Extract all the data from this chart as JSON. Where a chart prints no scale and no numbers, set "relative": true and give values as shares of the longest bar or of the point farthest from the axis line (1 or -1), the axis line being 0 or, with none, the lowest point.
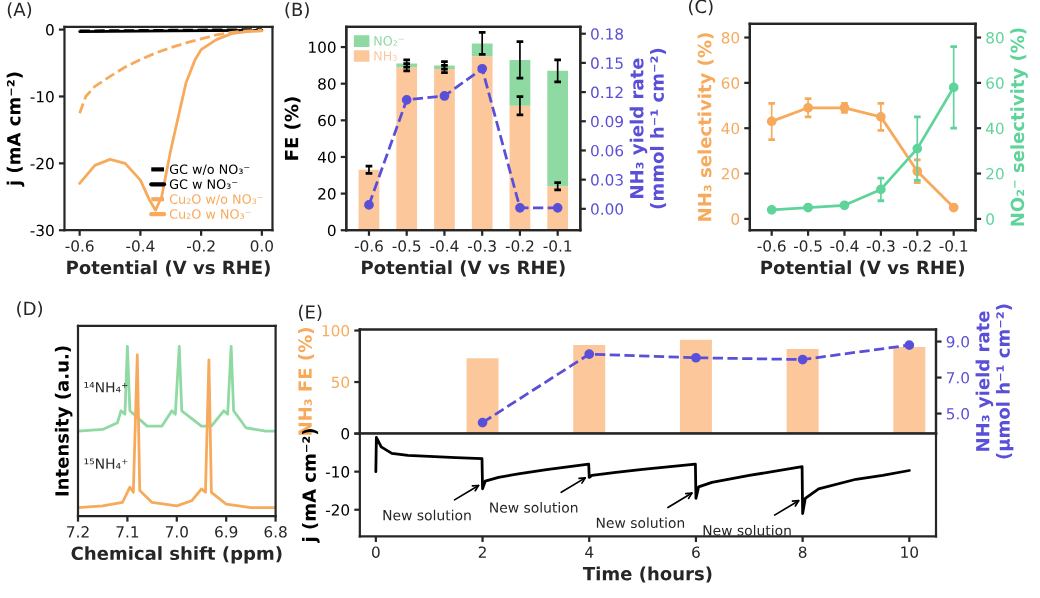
{
  "chart_data": [
    {
      "type": "line",
      "title": "(A)",
      "xlabel": "Potential (V vs RHE)",
      "ylabel": "j (mA cm⁻²)",
      "xlim": [
        -0.65,
        0.035
      ],
      "xticks": [
        -0.6,
        -0.4,
        -0.2,
        {
          "value": 0,
          "label": "0.0"
        }
      ],
      "ylim": [
        -30,
        0.4
      ],
      "yticks": [
        -30,
        -20,
        -10,
        0
      ],
      "legend": "bottom right",
      "series": [
        {
          "name": "GC w/o NO₃⁻",
          "color": "#000000",
          "line_style": "dashed",
          "x": [
            -0.6,
            -0.3,
            0.0
          ],
          "values": [
            -0.2,
            -0.1,
            0
          ]
        },
        {
          "name": "GC w NO₃⁻",
          "color": "#000000",
          "line_style": "solid",
          "x": [
            -0.6,
            -0.3,
            0.0
          ],
          "values": [
            -0.3,
            -0.2,
            -0.1
          ]
        },
        {
          "name": "Cu₂O w/o NO₃⁻",
          "color": "#f7a95c",
          "line_style": "dashed",
          "x": [
            -0.6,
            -0.58,
            -0.55,
            -0.5,
            -0.45,
            -0.4,
            -0.35,
            -0.3,
            -0.25,
            -0.2,
            -0.15,
            -0.1,
            -0.05,
            0.0
          ],
          "values": [
            -12.5,
            -10,
            -8.5,
            -7,
            -5.6,
            -4.5,
            -3.5,
            -2.7,
            -2,
            -1.4,
            -0.8,
            -0.4,
            -0.2,
            -0.1
          ]
        },
        {
          "name": "Cu₂O w NO₃⁻",
          "color": "#f7a95c",
          "line_style": "solid",
          "x": [
            -0.6,
            -0.55,
            -0.5,
            -0.45,
            -0.4,
            -0.37,
            -0.35,
            -0.33,
            -0.3,
            -0.27,
            -0.25,
            -0.22,
            -0.2,
            -0.15,
            -0.1,
            -0.05,
            0.0
          ],
          "values": [
            -23,
            -20.3,
            -19.4,
            -20,
            -22.5,
            -25.5,
            -27,
            -25,
            -18,
            -12,
            -8,
            -4.5,
            -3,
            -1.5,
            -0.6,
            -0.3,
            -0.2
          ]
        }
      ]
    },
    {
      "type": "bar",
      "title": "(B)",
      "xlabel": "Potential (V vs RHE)",
      "ylabel": "FE (%)",
      "y2label": "NH₃ yield rate\n(mmol h⁻¹ cm⁻²)",
      "categories": [
        "-0.6",
        "-0.5",
        "-0.4",
        "-0.3",
        "-0.2",
        "-0.1"
      ],
      "stacked": true,
      "legend": "top left",
      "ylim": [
        0,
        111
      ],
      "yticks": [
        0,
        20,
        40,
        60,
        80,
        100
      ],
      "y2lim": [
        -0.022,
        0.187
      ],
      "y2ticks": [
        {
          "value": 0,
          "label": "0.00"
        },
        0.03,
        0.06,
        0.09,
        0.12,
        0.15,
        0.18
      ],
      "series": [
        {
          "name": "NH₃",
          "color": "#fcc89b",
          "values": [
            33,
            89,
            88,
            95,
            68,
            24
          ],
          "errors": [
            2,
            2,
            2,
            null,
            5,
            2
          ]
        },
        {
          "name": "NO₂⁻",
          "color": "#8fd9a3",
          "values": [
            null,
            2,
            2,
            7,
            25,
            63
          ],
          "errors": [
            null,
            2,
            2,
            6,
            10,
            6
          ]
        },
        {
          "type": "line",
          "axis": "y2",
          "color": "#5a4fd8",
          "line_style": "dashed",
          "marker": "circle",
          "values": [
            0.004,
            0.112,
            0.116,
            0.144,
            0.001,
            0.001
          ]
        }
      ]
    },
    {
      "type": "line",
      "title": "(C)",
      "xlabel": "Potential (V vs RHE)",
      "ylabel": "NH₃ selectivity (%)",
      "y2label": "NO₂⁻ selectivity (%)",
      "categories": [
        "-0.6",
        "-0.5",
        "-0.4",
        "-0.3",
        "-0.2",
        "-0.1"
      ],
      "marker": "circle",
      "ylim": [
        -5,
        86
      ],
      "yticks": [
        0,
        20,
        40,
        60,
        80
      ],
      "y2lim": [
        -5,
        86
      ],
      "y2ticks": [
        0,
        20,
        40,
        60,
        80
      ],
      "series": [
        {
          "color": "#f7a95c",
          "values": [
            43,
            49,
            49,
            45,
            21,
            5
          ],
          "errors": [
            8,
            4,
            2,
            6,
            5,
            null
          ]
        },
        {
          "axis": "y2",
          "color": "#5fd49a",
          "values": [
            4,
            5,
            6,
            13,
            31,
            58
          ],
          "errors": [
            null,
            null,
            null,
            5,
            14,
            18
          ]
        }
      ]
    },
    {
      "type": "line",
      "title": "(D)",
      "xlabel": "Chemical shift (ppm)",
      "ylabel": "Intensity (a.u.)",
      "relative": true,
      "xlim": [
        7.2,
        6.8
      ],
      "xticks": [
        7.2,
        7.1,
        {
          "value": 7,
          "label": "7.0"
        },
        6.9,
        6.8
      ],
      "series": [
        {
          "name": "¹⁴NH₄⁺",
          "color": "#8fd9a3",
          "x": [
            7.2,
            7.15,
            7.12,
            7.113,
            7.105,
            7.1,
            7.095,
            7.06,
            7.03,
            7.01,
            7.003,
            6.995,
            6.99,
            6.95,
            6.93,
            6.905,
            6.897,
            6.89,
            6.885,
            6.86,
            6.82,
            6.8
          ],
          "values": [
            0.5,
            0.51,
            0.55,
            0.62,
            0.6,
            1.0,
            0.62,
            0.53,
            0.53,
            0.62,
            0.6,
            1.0,
            0.62,
            0.53,
            0.53,
            0.62,
            0.6,
            1.0,
            0.62,
            0.52,
            0.5,
            0.5
          ]
        },
        {
          "name": "¹⁵NH₄⁺",
          "color": "#f7a95c",
          "x": [
            7.2,
            7.15,
            7.11,
            7.095,
            7.088,
            7.08,
            7.075,
            7.05,
            7.0,
            6.97,
            6.95,
            6.942,
            6.935,
            6.93,
            6.9,
            6.85,
            6.8
          ],
          "values": [
            0.05,
            0.06,
            0.08,
            0.17,
            0.14,
            0.95,
            0.15,
            0.08,
            0.06,
            0.09,
            0.16,
            0.14,
            0.92,
            0.14,
            0.07,
            0.05,
            0.05
          ]
        }
      ]
    },
    {
      "type": "bar",
      "title": "(E)",
      "ylabel": "NH₃ FE (%)",
      "y2label": "NH₃ yield rate\n(μmol h⁻¹ cm⁻²)",
      "x": [
        2,
        4,
        6,
        8,
        10
      ],
      "xlim": [
        -0.3,
        10.5
      ],
      "xticks": [
        0,
        2,
        4,
        6,
        8,
        10
      ],
      "tick_labels": "y",
      "ylim": [
        0,
        101
      ],
      "yticks": [
        {
          "value": 0,
          "label": null
        },
        50,
        100
      ],
      "y2lim": [
        3.89,
        9.67
      ],
      "y2ticks": [
        {
          "value": 5,
          "label": "5.0"
        },
        {
          "value": 7,
          "label": "7.0"
        },
        {
          "value": 9,
          "label": "9.0"
        }
      ],
      "series": [
        {
          "color": "#fcc89b",
          "values": [
            73,
            86,
            91,
            82,
            84
          ]
        },
        {
          "type": "line",
          "axis": "y2",
          "color": "#5a4fd8",
          "line_style": "dashed",
          "marker": "circle",
          "values": [
            4.5,
            8.3,
            8.1,
            8.0,
            8.8
          ]
        }
      ]
    },
    {
      "type": "line",
      "xlabel": "Time (hours)",
      "ylabel": "j (mA cm⁻²)",
      "xlim": [
        -0.3,
        10.5
      ],
      "xticks": [
        0,
        2,
        4,
        6,
        8,
        10
      ],
      "ylim": [
        -27,
        0
      ],
      "yticks": [
        -20,
        -10,
        0
      ],
      "x": [
        0,
        0.01,
        0.1,
        0.3,
        0.6,
        1,
        1.5,
        1.99,
        2.0,
        2.05,
        2.3,
        2.7,
        3.2,
        3.99,
        4.0,
        4.05,
        4.5,
        5,
        5.99,
        6.0,
        6.05,
        6.3,
        7,
        7.99,
        8.0,
        8.05,
        8.3,
        9,
        9.5,
        10
      ],
      "series": [
        {
          "color": "#000000",
          "values": [
            -10,
            -1,
            -3.5,
            -5.2,
            -5.7,
            -6,
            -6.3,
            -6.6,
            -14.5,
            -12.5,
            -11.5,
            -10.5,
            -9.5,
            -8,
            -11.5,
            -11,
            -10.2,
            -9.4,
            -8,
            -17,
            -14,
            -12.8,
            -11,
            -8.7,
            -21,
            -17,
            -14.5,
            -12,
            -11,
            -9.7
          ]
        }
      ],
      "annotations": [
        {
          "text": "New solution",
          "x": 2,
          "y": -13
        },
        {
          "text": "New solution",
          "x": 4,
          "y": -11
        },
        {
          "text": "New solution",
          "x": 6,
          "y": -15
        },
        {
          "text": "New solution",
          "x": 8,
          "y": -17
        }
      ]
    }
  ]
}
